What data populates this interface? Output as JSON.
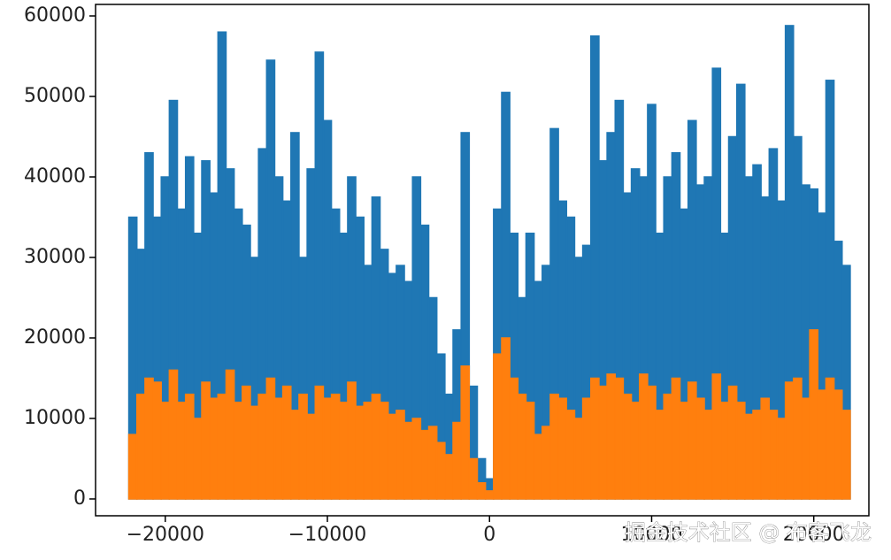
{
  "chart_data": {
    "type": "bar",
    "x": [
      -22000,
      -21500,
      -21000,
      -20500,
      -20000,
      -19500,
      -19000,
      -18500,
      -18000,
      -17500,
      -17000,
      -16500,
      -16000,
      -15500,
      -15000,
      -14500,
      -14000,
      -13500,
      -13000,
      -12500,
      -12000,
      -11500,
      -11000,
      -10500,
      -10000,
      -9500,
      -9000,
      -8500,
      -8000,
      -7500,
      -7000,
      -6500,
      -6000,
      -5500,
      -5000,
      -4500,
      -4000,
      -3500,
      -3000,
      -2500,
      -2000,
      -1500,
      -1000,
      -500,
      0,
      500,
      1000,
      1500,
      2000,
      2500,
      3000,
      3500,
      4000,
      4500,
      5000,
      5500,
      6000,
      6500,
      7000,
      7500,
      8000,
      8500,
      9000,
      9500,
      10000,
      10500,
      11000,
      11500,
      12000,
      12500,
      13000,
      13500,
      14000,
      14500,
      15000,
      15500,
      16000,
      16500,
      17000,
      17500,
      18000,
      18500,
      19000,
      19500,
      20000,
      20500,
      21000,
      21500,
      22000
    ],
    "series": [
      {
        "color": "#1f77b4",
        "values": [
          35000,
          31000,
          43000,
          35000,
          40000,
          49500,
          36000,
          42500,
          33000,
          42000,
          38000,
          58000,
          41000,
          36000,
          34000,
          30000,
          43500,
          54500,
          40000,
          37000,
          45500,
          30000,
          41000,
          55500,
          47000,
          36000,
          33000,
          40000,
          35000,
          29000,
          37500,
          31000,
          28000,
          29000,
          27000,
          40000,
          34000,
          25000,
          18000,
          13000,
          21000,
          45500,
          14000,
          5000,
          2500,
          36000,
          50500,
          33000,
          25000,
          33000,
          27000,
          29000,
          46000,
          37000,
          35000,
          30000,
          31500,
          57500,
          42000,
          45500,
          49500,
          38000,
          41000,
          40000,
          49000,
          33000,
          40000,
          43000,
          36000,
          47000,
          39000,
          40000,
          53500,
          33000,
          45000,
          51500,
          40000,
          41500,
          37500,
          43500,
          37000,
          58800,
          45000,
          39000,
          38500,
          35500,
          52000,
          32000,
          29000
        ]
      },
      {
        "color": "#ff7f0e",
        "values": [
          8000,
          13000,
          15000,
          14500,
          12000,
          16000,
          12000,
          13000,
          10000,
          14500,
          12500,
          13000,
          16000,
          12000,
          14000,
          11500,
          13000,
          15000,
          12500,
          14000,
          11000,
          13000,
          10500,
          14000,
          12500,
          13000,
          12000,
          14500,
          11500,
          12000,
          13000,
          12000,
          10500,
          11000,
          9500,
          10000,
          8500,
          9000,
          7000,
          5500,
          9500,
          16500,
          5000,
          2000,
          1000,
          18000,
          20000,
          15000,
          13000,
          12000,
          8000,
          9000,
          13000,
          12500,
          11000,
          10000,
          12500,
          15000,
          14000,
          15500,
          15000,
          13000,
          12000,
          15500,
          14000,
          11000,
          13000,
          15000,
          12000,
          14500,
          12500,
          11000,
          15500,
          12000,
          14000,
          12000,
          10500,
          11000,
          12500,
          11000,
          10000,
          14500,
          15000,
          12500,
          21000,
          13500,
          15000,
          13500,
          11000
        ]
      }
    ],
    "xlim": [
      -24300,
      23400
    ],
    "ylim": [
      -2090,
      61430
    ],
    "xticks": [
      {
        "value": -20000,
        "label": "−20000"
      },
      {
        "value": -10000,
        "label": "−10000"
      },
      0,
      10000,
      20000
    ],
    "yticks": [
      0,
      10000,
      20000,
      30000,
      40000,
      50000,
      60000
    ],
    "bar_width": 500
  },
  "watermark": "掘金技术社区 @ 布客飞龙"
}
